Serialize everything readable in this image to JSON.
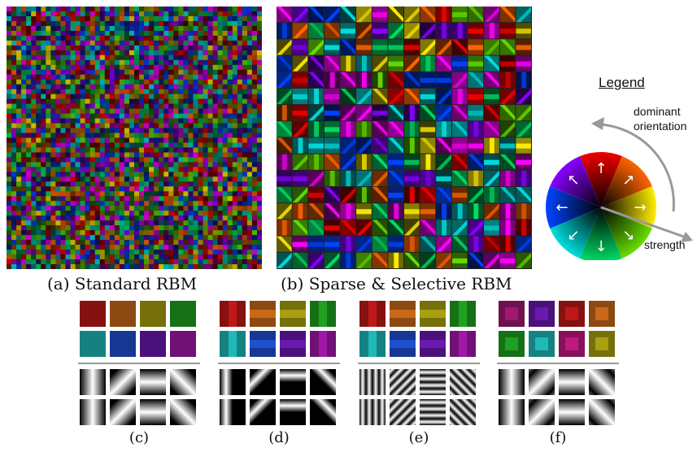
{
  "figure": {
    "panel_a": {
      "caption": "(a) Standard RBM"
    },
    "panel_b": {
      "caption": "(b) Sparse & Selective RBM"
    },
    "legend": {
      "title": "Legend",
      "orientation_label_line1": "dominant",
      "orientation_label_line2": "orientation",
      "strength_label": "strength",
      "wheel_colors": [
        "#ff00ff",
        "#ee0000",
        "#ff6600",
        "#ffee00",
        "#66dd00",
        "#00dd66",
        "#00dddd",
        "#0044ff",
        "#8800ff",
        "#ff00ff"
      ]
    },
    "subpanels": [
      {
        "caption": "(c)",
        "colors": [
          "#c01818",
          "#c86818",
          "#a8a010",
          "#20a020",
          "#20b8b8",
          "#2050d0",
          "#6a18b0",
          "#a018a8"
        ]
      },
      {
        "caption": "(d)",
        "colors": [
          "#c01818",
          "#c86818",
          "#a8a010",
          "#20a020",
          "#20b8b8",
          "#2050d0",
          "#6a18b0",
          "#a018a8"
        ]
      },
      {
        "caption": "(e)",
        "colors": [
          "#c01818",
          "#c86818",
          "#a8a010",
          "#20a020",
          "#20b8b8",
          "#2050d0",
          "#6a18b0",
          "#a018a8"
        ]
      },
      {
        "caption": "(f)",
        "colors": [
          "#a01870",
          "#6a18b0",
          "#c01818",
          "#c86818",
          "#20a020",
          "#20b8b8",
          "#c01880",
          "#a8a010"
        ]
      }
    ]
  }
}
